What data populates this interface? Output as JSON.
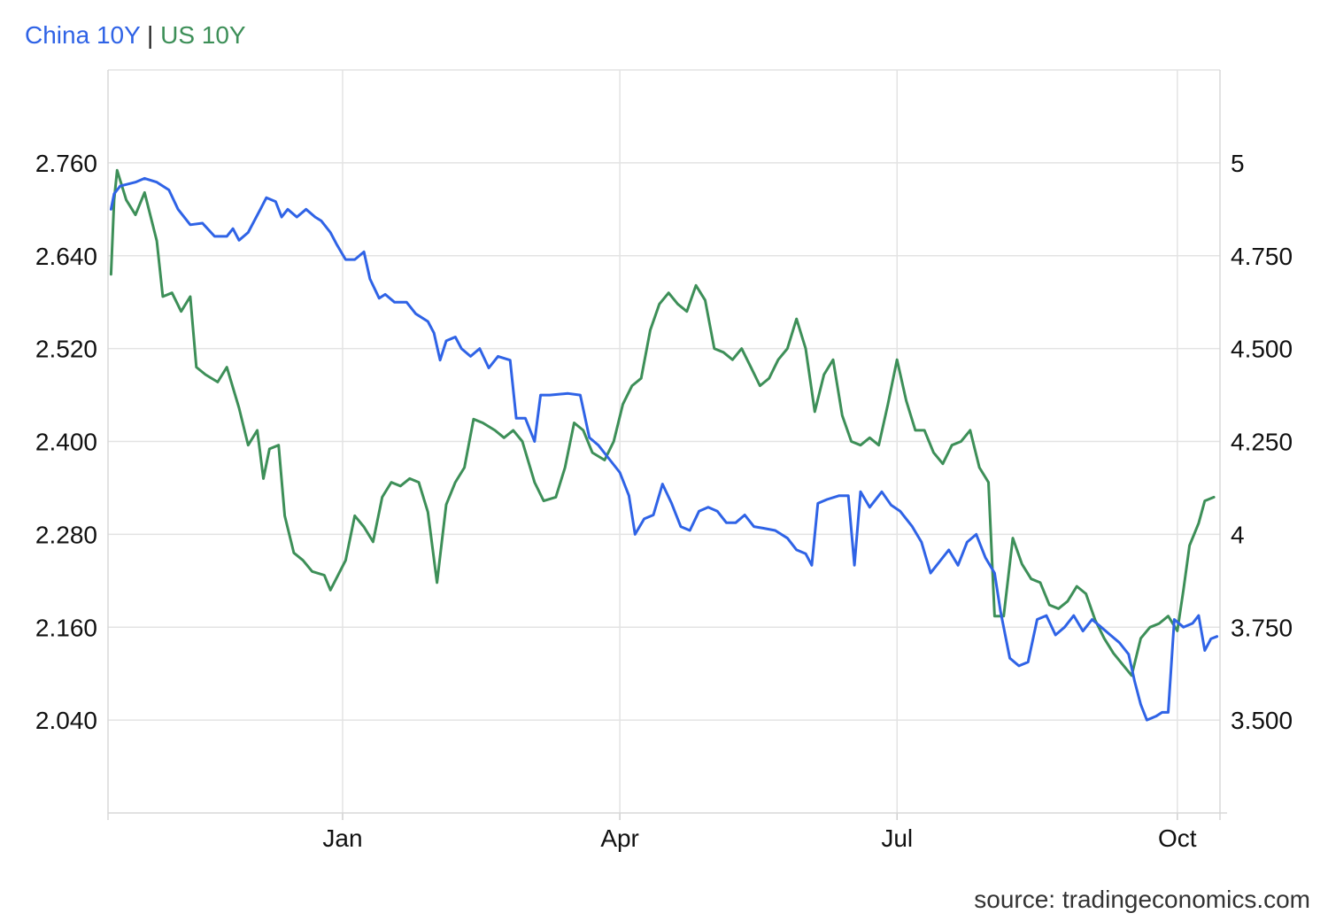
{
  "legend": {
    "series1": "China 10Y",
    "separator": "|",
    "series2": "US 10Y"
  },
  "source": "source: tradingeconomics.com",
  "chart_data": {
    "type": "line",
    "title": "",
    "xlabel": "",
    "ylabel": "",
    "grid": true,
    "legend_position": "top-left",
    "x_tick_labels": [
      "Jan",
      "Apr",
      "Jul",
      "Oct"
    ],
    "y_left_ticks": [
      "2.760",
      "2.640",
      "2.520",
      "2.400",
      "2.280",
      "2.160",
      "2.040"
    ],
    "y_right_ticks": [
      "5",
      "4.750",
      "4.500",
      "4.250",
      "4",
      "3.750",
      "3.500"
    ],
    "y_left_range": [
      1.92,
      2.88
    ],
    "y_right_range": [
      3.25,
      5.25
    ],
    "x_range": [
      "2023-10-16",
      "2024-10-15"
    ],
    "x_tick_dates": [
      "2024-01-01",
      "2024-04-01",
      "2024-07-01",
      "2024-10-01"
    ],
    "series": [
      {
        "name": "China 10Y",
        "color": "#2f63e6",
        "axis": "left",
        "points": [
          [
            "2023-10-17",
            2.7
          ],
          [
            "2023-10-18",
            2.72
          ],
          [
            "2023-10-20",
            2.73
          ],
          [
            "2023-10-25",
            2.735
          ],
          [
            "2023-10-28",
            2.74
          ],
          [
            "2023-11-01",
            2.735
          ],
          [
            "2023-11-05",
            2.725
          ],
          [
            "2023-11-08",
            2.7
          ],
          [
            "2023-11-12",
            2.68
          ],
          [
            "2023-11-16",
            2.682
          ],
          [
            "2023-11-20",
            2.665
          ],
          [
            "2023-11-24",
            2.665
          ],
          [
            "2023-11-26",
            2.675
          ],
          [
            "2023-11-28",
            2.66
          ],
          [
            "2023-12-01",
            2.67
          ],
          [
            "2023-12-05",
            2.7
          ],
          [
            "2023-12-07",
            2.715
          ],
          [
            "2023-12-10",
            2.71
          ],
          [
            "2023-12-12",
            2.69
          ],
          [
            "2023-12-14",
            2.7
          ],
          [
            "2023-12-17",
            2.69
          ],
          [
            "2023-12-20",
            2.7
          ],
          [
            "2023-12-23",
            2.69
          ],
          [
            "2023-12-25",
            2.685
          ],
          [
            "2023-12-28",
            2.67
          ],
          [
            "2023-12-30",
            2.655
          ],
          [
            "2024-01-02",
            2.635
          ],
          [
            "2024-01-05",
            2.635
          ],
          [
            "2024-01-08",
            2.645
          ],
          [
            "2024-01-10",
            2.61
          ],
          [
            "2024-01-13",
            2.585
          ],
          [
            "2024-01-15",
            2.59
          ],
          [
            "2024-01-18",
            2.58
          ],
          [
            "2024-01-22",
            2.58
          ],
          [
            "2024-01-25",
            2.565
          ],
          [
            "2024-01-29",
            2.555
          ],
          [
            "2024-01-31",
            2.54
          ],
          [
            "2024-02-02",
            2.505
          ],
          [
            "2024-02-04",
            2.53
          ],
          [
            "2024-02-07",
            2.535
          ],
          [
            "2024-02-09",
            2.52
          ],
          [
            "2024-02-12",
            2.51
          ],
          [
            "2024-02-15",
            2.52
          ],
          [
            "2024-02-18",
            2.495
          ],
          [
            "2024-02-21",
            2.51
          ],
          [
            "2024-02-25",
            2.505
          ],
          [
            "2024-02-27",
            2.43
          ],
          [
            "2024-03-01",
            2.43
          ],
          [
            "2024-03-04",
            2.4
          ],
          [
            "2024-03-06",
            2.46
          ],
          [
            "2024-03-09",
            2.46
          ],
          [
            "2024-03-15",
            2.462
          ],
          [
            "2024-03-19",
            2.46
          ],
          [
            "2024-03-22",
            2.405
          ],
          [
            "2024-03-25",
            2.395
          ],
          [
            "2024-03-28",
            2.38
          ],
          [
            "2024-04-01",
            2.36
          ],
          [
            "2024-04-04",
            2.33
          ],
          [
            "2024-04-06",
            2.28
          ],
          [
            "2024-04-09",
            2.3
          ],
          [
            "2024-04-12",
            2.305
          ],
          [
            "2024-04-15",
            2.345
          ],
          [
            "2024-04-18",
            2.32
          ],
          [
            "2024-04-21",
            2.29
          ],
          [
            "2024-04-24",
            2.285
          ],
          [
            "2024-04-27",
            2.31
          ],
          [
            "2024-04-30",
            2.315
          ],
          [
            "2024-05-03",
            2.31
          ],
          [
            "2024-05-06",
            2.295
          ],
          [
            "2024-05-09",
            2.295
          ],
          [
            "2024-05-12",
            2.305
          ],
          [
            "2024-05-15",
            2.29
          ],
          [
            "2024-05-18",
            2.288
          ],
          [
            "2024-05-22",
            2.285
          ],
          [
            "2024-05-26",
            2.275
          ],
          [
            "2024-05-29",
            2.26
          ],
          [
            "2024-06-01",
            2.255
          ],
          [
            "2024-06-03",
            2.24
          ],
          [
            "2024-06-05",
            2.32
          ],
          [
            "2024-06-08",
            2.325
          ],
          [
            "2024-06-12",
            2.33
          ],
          [
            "2024-06-15",
            2.33
          ],
          [
            "2024-06-17",
            2.24
          ],
          [
            "2024-06-19",
            2.335
          ],
          [
            "2024-06-22",
            2.315
          ],
          [
            "2024-06-26",
            2.335
          ],
          [
            "2024-06-29",
            2.318
          ],
          [
            "2024-07-02",
            2.31
          ],
          [
            "2024-07-06",
            2.29
          ],
          [
            "2024-07-09",
            2.27
          ],
          [
            "2024-07-12",
            2.23
          ],
          [
            "2024-07-15",
            2.245
          ],
          [
            "2024-07-18",
            2.26
          ],
          [
            "2024-07-21",
            2.24
          ],
          [
            "2024-07-24",
            2.27
          ],
          [
            "2024-07-27",
            2.28
          ],
          [
            "2024-07-30",
            2.25
          ],
          [
            "2024-08-02",
            2.23
          ],
          [
            "2024-08-04",
            2.18
          ],
          [
            "2024-08-07",
            2.12
          ],
          [
            "2024-08-10",
            2.11
          ],
          [
            "2024-08-13",
            2.115
          ],
          [
            "2024-08-16",
            2.17
          ],
          [
            "2024-08-19",
            2.175
          ],
          [
            "2024-08-22",
            2.15
          ],
          [
            "2024-08-25",
            2.16
          ],
          [
            "2024-08-28",
            2.175
          ],
          [
            "2024-08-31",
            2.155
          ],
          [
            "2024-09-03",
            2.17
          ],
          [
            "2024-09-06",
            2.16
          ],
          [
            "2024-09-09",
            2.15
          ],
          [
            "2024-09-12",
            2.14
          ],
          [
            "2024-09-15",
            2.125
          ],
          [
            "2024-09-17",
            2.09
          ],
          [
            "2024-09-19",
            2.06
          ],
          [
            "2024-09-21",
            2.04
          ],
          [
            "2024-09-24",
            2.045
          ],
          [
            "2024-09-26",
            2.05
          ],
          [
            "2024-09-28",
            2.05
          ],
          [
            "2024-09-30",
            2.17
          ],
          [
            "2024-10-03",
            2.16
          ],
          [
            "2024-10-06",
            2.165
          ],
          [
            "2024-10-08",
            2.175
          ],
          [
            "2024-10-10",
            2.13
          ],
          [
            "2024-10-12",
            2.145
          ],
          [
            "2024-10-14",
            2.148
          ]
        ]
      },
      {
        "name": "US 10Y",
        "color": "#3d8f58",
        "axis": "right",
        "points": [
          [
            "2023-10-17",
            4.7
          ],
          [
            "2023-10-18",
            4.9
          ],
          [
            "2023-10-19",
            4.98
          ],
          [
            "2023-10-22",
            4.9
          ],
          [
            "2023-10-25",
            4.86
          ],
          [
            "2023-10-28",
            4.92
          ],
          [
            "2023-11-01",
            4.79
          ],
          [
            "2023-11-03",
            4.64
          ],
          [
            "2023-11-06",
            4.65
          ],
          [
            "2023-11-09",
            4.6
          ],
          [
            "2023-11-12",
            4.64
          ],
          [
            "2023-11-14",
            4.45
          ],
          [
            "2023-11-17",
            4.43
          ],
          [
            "2023-11-21",
            4.41
          ],
          [
            "2023-11-24",
            4.45
          ],
          [
            "2023-11-28",
            4.34
          ],
          [
            "2023-12-01",
            4.24
          ],
          [
            "2023-12-04",
            4.28
          ],
          [
            "2023-12-06",
            4.15
          ],
          [
            "2023-12-08",
            4.23
          ],
          [
            "2023-12-11",
            4.24
          ],
          [
            "2023-12-13",
            4.05
          ],
          [
            "2023-12-16",
            3.95
          ],
          [
            "2023-12-19",
            3.93
          ],
          [
            "2023-12-22",
            3.9
          ],
          [
            "2023-12-26",
            3.89
          ],
          [
            "2023-12-28",
            3.85
          ],
          [
            "2024-01-02",
            3.93
          ],
          [
            "2024-01-05",
            4.05
          ],
          [
            "2024-01-08",
            4.02
          ],
          [
            "2024-01-11",
            3.98
          ],
          [
            "2024-01-14",
            4.1
          ],
          [
            "2024-01-17",
            4.14
          ],
          [
            "2024-01-20",
            4.13
          ],
          [
            "2024-01-23",
            4.15
          ],
          [
            "2024-01-26",
            4.14
          ],
          [
            "2024-01-29",
            4.06
          ],
          [
            "2024-02-01",
            3.87
          ],
          [
            "2024-02-04",
            4.08
          ],
          [
            "2024-02-07",
            4.14
          ],
          [
            "2024-02-10",
            4.18
          ],
          [
            "2024-02-13",
            4.31
          ],
          [
            "2024-02-16",
            4.3
          ],
          [
            "2024-02-20",
            4.28
          ],
          [
            "2024-02-23",
            4.26
          ],
          [
            "2024-02-26",
            4.28
          ],
          [
            "2024-02-29",
            4.25
          ],
          [
            "2024-03-04",
            4.14
          ],
          [
            "2024-03-07",
            4.09
          ],
          [
            "2024-03-11",
            4.1
          ],
          [
            "2024-03-14",
            4.18
          ],
          [
            "2024-03-17",
            4.3
          ],
          [
            "2024-03-20",
            4.28
          ],
          [
            "2024-03-23",
            4.22
          ],
          [
            "2024-03-27",
            4.2
          ],
          [
            "2024-03-30",
            4.25
          ],
          [
            "2024-04-02",
            4.35
          ],
          [
            "2024-04-05",
            4.4
          ],
          [
            "2024-04-08",
            4.42
          ],
          [
            "2024-04-11",
            4.55
          ],
          [
            "2024-04-14",
            4.62
          ],
          [
            "2024-04-17",
            4.65
          ],
          [
            "2024-04-20",
            4.62
          ],
          [
            "2024-04-23",
            4.6
          ],
          [
            "2024-04-26",
            4.67
          ],
          [
            "2024-04-29",
            4.63
          ],
          [
            "2024-05-02",
            4.5
          ],
          [
            "2024-05-05",
            4.49
          ],
          [
            "2024-05-08",
            4.47
          ],
          [
            "2024-05-11",
            4.5
          ],
          [
            "2024-05-14",
            4.45
          ],
          [
            "2024-05-17",
            4.4
          ],
          [
            "2024-05-20",
            4.42
          ],
          [
            "2024-05-23",
            4.47
          ],
          [
            "2024-05-26",
            4.5
          ],
          [
            "2024-05-29",
            4.58
          ],
          [
            "2024-06-01",
            4.5
          ],
          [
            "2024-06-04",
            4.33
          ],
          [
            "2024-06-07",
            4.43
          ],
          [
            "2024-06-10",
            4.47
          ],
          [
            "2024-06-13",
            4.32
          ],
          [
            "2024-06-16",
            4.25
          ],
          [
            "2024-06-19",
            4.24
          ],
          [
            "2024-06-22",
            4.26
          ],
          [
            "2024-06-25",
            4.24
          ],
          [
            "2024-06-28",
            4.35
          ],
          [
            "2024-07-01",
            4.47
          ],
          [
            "2024-07-04",
            4.36
          ],
          [
            "2024-07-07",
            4.28
          ],
          [
            "2024-07-10",
            4.28
          ],
          [
            "2024-07-13",
            4.22
          ],
          [
            "2024-07-16",
            4.19
          ],
          [
            "2024-07-19",
            4.24
          ],
          [
            "2024-07-22",
            4.25
          ],
          [
            "2024-07-25",
            4.28
          ],
          [
            "2024-07-28",
            4.18
          ],
          [
            "2024-07-31",
            4.14
          ],
          [
            "2024-08-02",
            3.78
          ],
          [
            "2024-08-05",
            3.78
          ],
          [
            "2024-08-08",
            3.99
          ],
          [
            "2024-08-11",
            3.92
          ],
          [
            "2024-08-14",
            3.88
          ],
          [
            "2024-08-17",
            3.87
          ],
          [
            "2024-08-20",
            3.81
          ],
          [
            "2024-08-23",
            3.8
          ],
          [
            "2024-08-26",
            3.82
          ],
          [
            "2024-08-29",
            3.86
          ],
          [
            "2024-09-01",
            3.84
          ],
          [
            "2024-09-04",
            3.77
          ],
          [
            "2024-09-07",
            3.72
          ],
          [
            "2024-09-10",
            3.68
          ],
          [
            "2024-09-13",
            3.65
          ],
          [
            "2024-09-16",
            3.62
          ],
          [
            "2024-09-19",
            3.72
          ],
          [
            "2024-09-22",
            3.75
          ],
          [
            "2024-09-25",
            3.76
          ],
          [
            "2024-09-28",
            3.78
          ],
          [
            "2024-10-01",
            3.74
          ],
          [
            "2024-10-03",
            3.85
          ],
          [
            "2024-10-05",
            3.97
          ],
          [
            "2024-10-08",
            4.03
          ],
          [
            "2024-10-10",
            4.09
          ],
          [
            "2024-10-13",
            4.1
          ]
        ]
      }
    ]
  }
}
